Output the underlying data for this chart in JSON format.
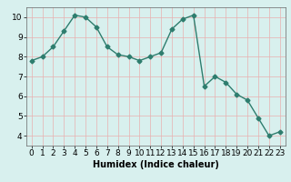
{
  "x": [
    0,
    1,
    2,
    3,
    4,
    5,
    6,
    7,
    8,
    9,
    10,
    11,
    12,
    13,
    14,
    15,
    16,
    17,
    18,
    19,
    20,
    21,
    22,
    23
  ],
  "y": [
    7.8,
    8.0,
    8.5,
    9.3,
    10.1,
    10.0,
    9.5,
    8.5,
    8.1,
    8.0,
    7.8,
    8.0,
    8.2,
    9.4,
    9.9,
    10.1,
    6.5,
    7.0,
    6.7,
    6.1,
    5.8,
    4.9,
    4.0,
    4.2
  ],
  "xlabel": "Humidex (Indice chaleur)",
  "ylim": [
    3.5,
    10.5
  ],
  "xlim": [
    -0.5,
    23.5
  ],
  "yticks": [
    4,
    5,
    6,
    7,
    8,
    9,
    10
  ],
  "xticks": [
    0,
    1,
    2,
    3,
    4,
    5,
    6,
    7,
    8,
    9,
    10,
    11,
    12,
    13,
    14,
    15,
    16,
    17,
    18,
    19,
    20,
    21,
    22,
    23
  ],
  "line_color": "#2e7d6e",
  "bg_color": "#d8f0ee",
  "grid_color": "#e8b0b0",
  "label_color": "#000000",
  "marker": "D",
  "markersize": 2.5,
  "linewidth": 1.0,
  "tick_fontsize": 6.5,
  "xlabel_fontsize": 7.0
}
